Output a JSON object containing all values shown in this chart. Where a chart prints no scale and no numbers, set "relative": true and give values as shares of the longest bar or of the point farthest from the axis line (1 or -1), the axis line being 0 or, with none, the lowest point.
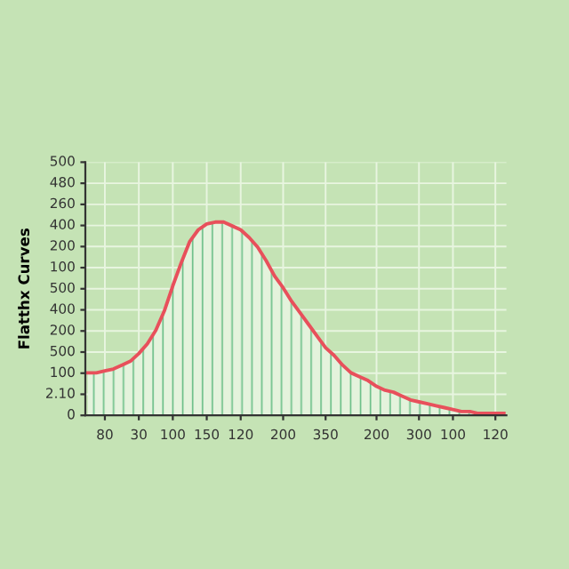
{
  "chart_data": {
    "type": "area",
    "ylabel": "Flatthx Curves",
    "relative": true,
    "categories": [
      null,
      null,
      "80",
      null,
      null,
      null,
      "30",
      null,
      null,
      null,
      "100",
      null,
      null,
      null,
      "150",
      null,
      null,
      null,
      "120",
      null,
      null,
      null,
      null,
      "200",
      null,
      null,
      null,
      null,
      "350",
      null,
      null,
      null,
      null,
      null,
      "200",
      null,
      null,
      null,
      null,
      "300",
      null,
      null,
      null,
      "100",
      null,
      null,
      null,
      null,
      "120",
      null
    ],
    "series": [
      {
        "color": "#e8505b",
        "values": [
          0.22,
          0.22,
          0.23,
          0.24,
          0.26,
          0.28,
          0.32,
          0.37,
          0.44,
          0.54,
          0.67,
          0.79,
          0.9,
          0.96,
          0.99,
          1.0,
          1.0,
          0.98,
          0.96,
          0.92,
          0.87,
          0.8,
          0.72,
          0.66,
          0.59,
          0.53,
          0.47,
          0.41,
          0.35,
          0.31,
          0.26,
          0.22,
          0.2,
          0.18,
          0.15,
          0.13,
          0.12,
          0.1,
          0.08,
          0.07,
          0.06,
          0.05,
          0.04,
          0.03,
          0.02,
          0.02,
          0.01,
          0.01,
          0.01,
          0.01
        ]
      }
    ],
    "annotations": [
      "0",
      "2.10",
      "100",
      "500",
      "200",
      "400",
      "500",
      "100",
      "200",
      "400",
      "260",
      "480",
      "500"
    ],
    "grid": true
  }
}
